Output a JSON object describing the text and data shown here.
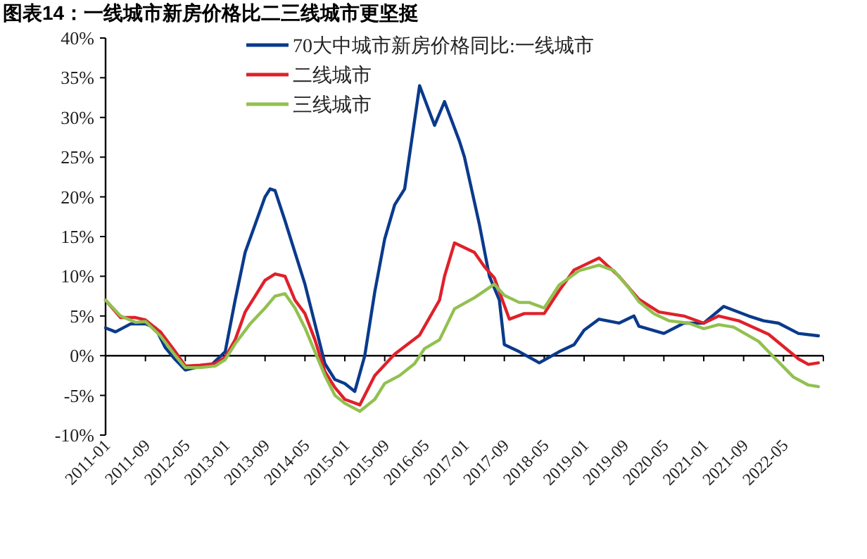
{
  "chart_data": {
    "type": "line",
    "title": "图表14：一线城市新房价格比二三线城市更坚挺",
    "legend": "top",
    "xlim": [
      "2011-01",
      "2023-01"
    ],
    "xticks": [
      "2011-01",
      "2011-09",
      "2012-05",
      "2013-01",
      "2013-09",
      "2014-05",
      "2015-01",
      "2015-09",
      "2016-05",
      "2017-01",
      "2017-09",
      "2018-05",
      "2019-01",
      "2019-09",
      "2020-05",
      "2021-01",
      "2021-09",
      "2022-05",
      {
        "value": "2023-01",
        "label": null
      }
    ],
    "ylim": [
      -10,
      40
    ],
    "yticks": [
      {
        "value": -10,
        "label": "-10%"
      },
      {
        "value": -5,
        "label": "-5%"
      },
      {
        "value": 0,
        "label": "0%"
      },
      {
        "value": 5,
        "label": "5%"
      },
      {
        "value": 10,
        "label": "10%"
      },
      {
        "value": 15,
        "label": "15%"
      },
      {
        "value": 20,
        "label": "20%"
      },
      {
        "value": 25,
        "label": "25%"
      },
      {
        "value": 30,
        "label": "30%"
      },
      {
        "value": 35,
        "label": "35%"
      },
      {
        "value": 40,
        "label": "40%"
      }
    ],
    "series": [
      {
        "name": "70大中城市新房价格同比:一线城市",
        "color": "#0a3a8c",
        "x": [
          "2011-01",
          "2011-03",
          "2011-06",
          "2011-09",
          "2011-11",
          "2012-01",
          "2012-03",
          "2012-05",
          "2012-07",
          "2012-10",
          "2013-01",
          "2013-03",
          "2013-05",
          "2013-07",
          "2013-09",
          "2013-10",
          "2013-11",
          "2014-01",
          "2014-03",
          "2014-05",
          "2014-07",
          "2014-09",
          "2014-11",
          "2015-01",
          "2015-03",
          "2015-05",
          "2015-07",
          "2015-09",
          "2015-11",
          "2016-01",
          "2016-04",
          "2016-07",
          "2016-09",
          "2016-12",
          "2017-01",
          "2017-04",
          "2017-06",
          "2017-08",
          "2017-09",
          "2017-12",
          "2018-04",
          "2018-08",
          "2018-11",
          "2019-01",
          "2019-04",
          "2019-08",
          "2019-11",
          "2019-12",
          "2020-05",
          "2020-09",
          "2021-01",
          "2021-05",
          "2021-10",
          "2022-01",
          "2022-04",
          "2022-08",
          "2022-12"
        ],
        "values": [
          3.5,
          3.0,
          4.0,
          4.0,
          3.5,
          1.0,
          -0.5,
          -1.8,
          -1.5,
          -1.3,
          0.5,
          7,
          13,
          16.5,
          20,
          21,
          20.8,
          17,
          13,
          9,
          4,
          -1,
          -3,
          -3.5,
          -4.5,
          0,
          8,
          14.7,
          19,
          21,
          34,
          29,
          32,
          27,
          25,
          16.5,
          10,
          7,
          1.4,
          0.5,
          -0.9,
          0.5,
          1.4,
          3.2,
          4.6,
          4.1,
          5.0,
          3.7,
          2.8,
          4.1,
          4.1,
          6.2,
          5.0,
          4.4,
          4.1,
          2.8,
          2.5
        ]
      },
      {
        "name": "二线城市",
        "color": "#e0202a",
        "x": [
          "2011-01",
          "2011-04",
          "2011-07",
          "2011-09",
          "2011-12",
          "2012-03",
          "2012-05",
          "2012-08",
          "2012-11",
          "2013-01",
          "2013-03",
          "2013-05",
          "2013-07",
          "2013-09",
          "2013-11",
          "2014-01",
          "2014-03",
          "2014-05",
          "2014-07",
          "2014-09",
          "2014-11",
          "2015-01",
          "2015-04",
          "2015-07",
          "2015-11",
          "2016-04",
          "2016-08",
          "2016-09",
          "2016-11",
          "2017-03",
          "2017-05",
          "2017-07",
          "2017-10",
          "2018-01",
          "2018-03",
          "2018-05",
          "2018-08",
          "2018-11",
          "2019-04",
          "2019-08",
          "2019-12",
          "2020-04",
          "2020-09",
          "2021-01",
          "2021-04",
          "2021-08",
          "2022-02",
          "2022-08",
          "2022-10",
          "2022-12"
        ],
        "values": [
          7,
          4.8,
          4.8,
          4.5,
          3,
          0.5,
          -1.3,
          -1.2,
          -1,
          -0.2,
          2,
          5.5,
          7.5,
          9.5,
          10.3,
          10,
          7,
          5.3,
          2,
          -2,
          -4,
          -5.5,
          -6.2,
          -2.5,
          0.2,
          2.6,
          7,
          10,
          14.2,
          13,
          11.2,
          9.8,
          4.6,
          5.3,
          5.3,
          5.3,
          8.2,
          10.8,
          12.3,
          10,
          7.1,
          5.5,
          5,
          4.1,
          5,
          4.4,
          2.7,
          -0.4,
          -1.1,
          -0.9
        ]
      },
      {
        "name": "三线城市",
        "color": "#92c050",
        "x": [
          "2011-01",
          "2011-04",
          "2011-07",
          "2011-09",
          "2011-12",
          "2012-03",
          "2012-05",
          "2012-08",
          "2012-11",
          "2013-01",
          "2013-03",
          "2013-06",
          "2013-09",
          "2013-11",
          "2014-01",
          "2014-03",
          "2014-05",
          "2014-07",
          "2014-09",
          "2014-11",
          "2015-01",
          "2015-04",
          "2015-07",
          "2015-09",
          "2015-12",
          "2016-03",
          "2016-05",
          "2016-08",
          "2016-11",
          "2017-03",
          "2017-07",
          "2017-09",
          "2017-12",
          "2018-02",
          "2018-05",
          "2018-08",
          "2018-12",
          "2019-04",
          "2019-07",
          "2019-10",
          "2019-12",
          "2020-03",
          "2020-06",
          "2020-10",
          "2021-01",
          "2021-04",
          "2021-07",
          "2021-12",
          "2022-02",
          "2022-07",
          "2022-10",
          "2022-12"
        ],
        "values": [
          7,
          5,
          4.2,
          4.3,
          2.5,
          0,
          -1.5,
          -1.5,
          -1.3,
          -0.5,
          1.5,
          4,
          6,
          7.5,
          7.8,
          6,
          3.5,
          0.5,
          -2.5,
          -5,
          -6,
          -7,
          -5.5,
          -3.5,
          -2.5,
          -1,
          0.9,
          2,
          5.9,
          7.3,
          9,
          7.6,
          6.7,
          6.7,
          6,
          8.9,
          10.7,
          11.4,
          10.7,
          8.5,
          6.8,
          5.3,
          4.4,
          4.1,
          3.4,
          3.9,
          3.6,
          1.8,
          0.5,
          -2.7,
          -3.7,
          -3.9
        ]
      }
    ]
  }
}
